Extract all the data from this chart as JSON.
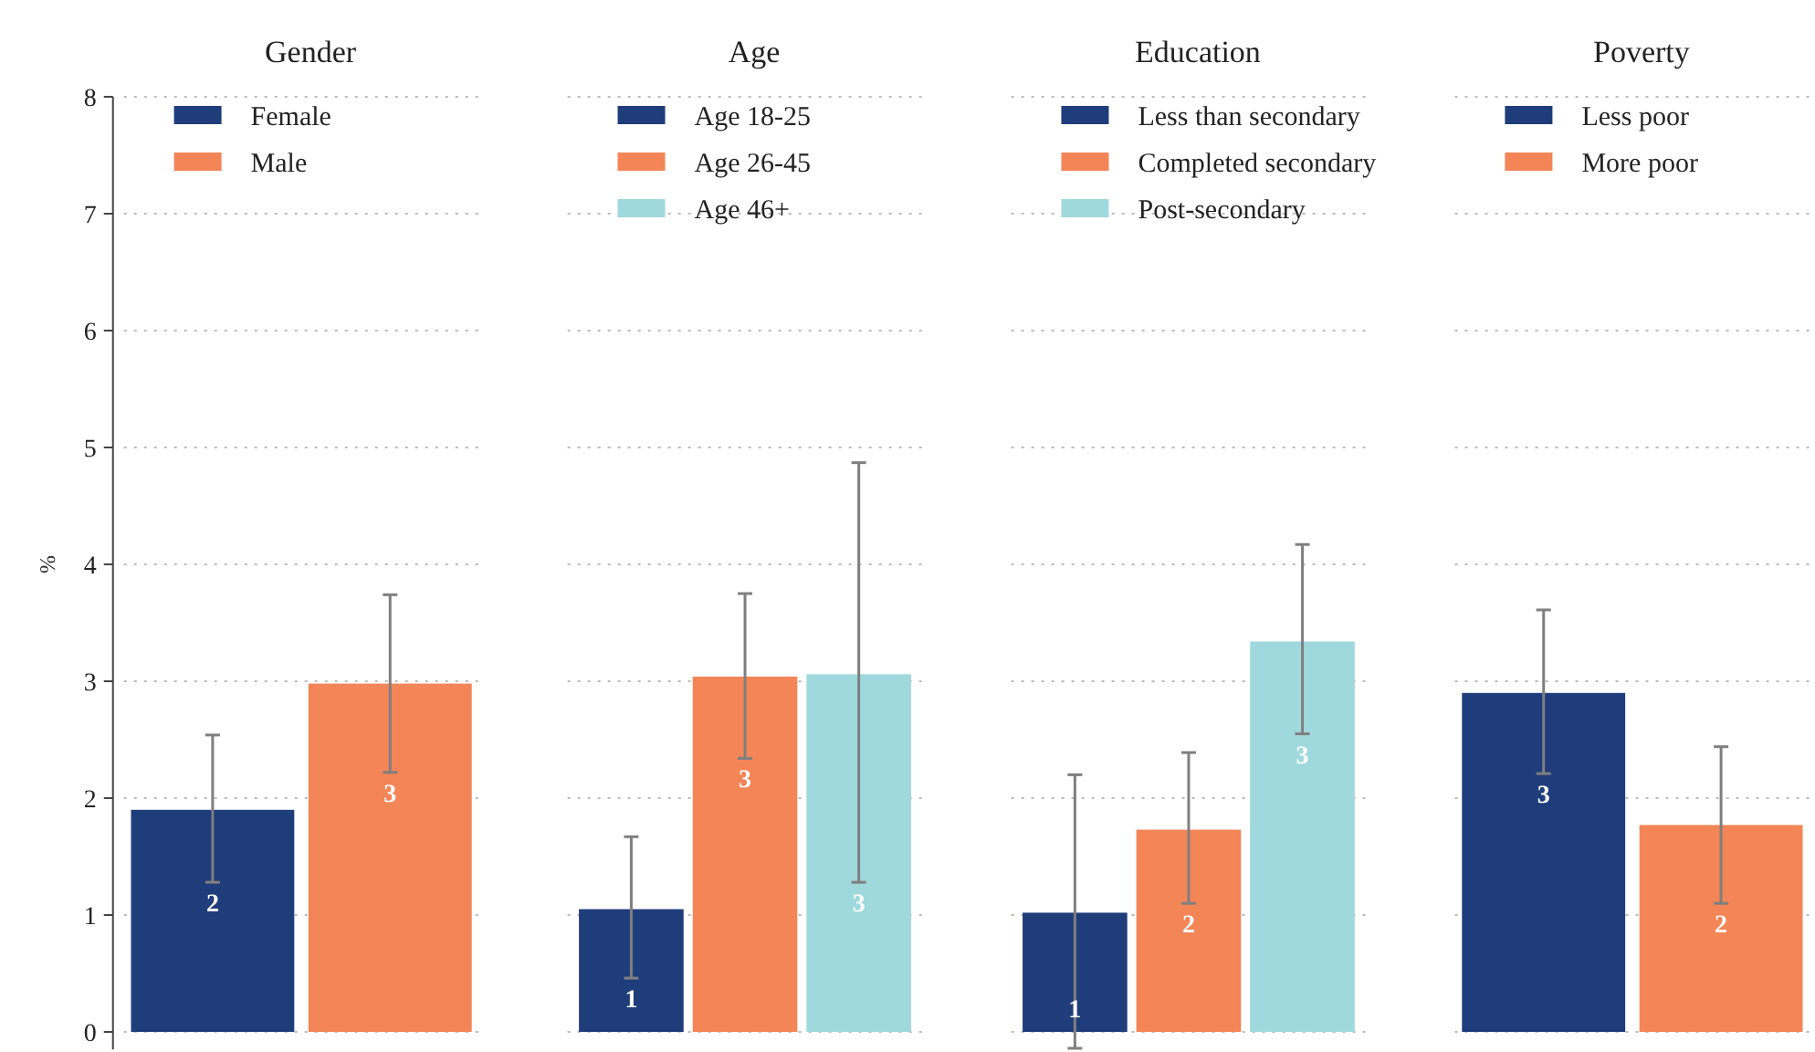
{
  "chart_data": {
    "type": "bar",
    "ylabel": "%",
    "categories": [
      "Gender",
      "Age",
      "Education",
      "Poverty"
    ],
    "ylim": [
      -0.15,
      8
    ],
    "yticks": [
      0,
      1,
      2,
      3,
      4,
      5,
      6,
      7,
      8
    ],
    "grid": "y",
    "legend": "top",
    "series": [
      {
        "name": "Female",
        "color": "#1f3d7a",
        "values": [
          1.9,
          null,
          null,
          null
        ],
        "errors": [
          [
            1.28,
            2.54
          ],
          null,
          null,
          null
        ],
        "value_labels": [
          "2",
          null,
          null,
          null
        ]
      },
      {
        "name": "Male",
        "color": "#f38557",
        "values": [
          2.98,
          null,
          null,
          null
        ],
        "errors": [
          [
            2.22,
            3.74
          ],
          null,
          null,
          null
        ],
        "value_labels": [
          "3",
          null,
          null,
          null
        ]
      },
      {
        "name": "Age 18-25",
        "color": "#1f3d7a",
        "values": [
          null,
          1.05,
          null,
          null
        ],
        "errors": [
          null,
          [
            0.46,
            1.67
          ],
          null,
          null
        ],
        "value_labels": [
          null,
          "1",
          null,
          null
        ]
      },
      {
        "name": "Age 26-45",
        "color": "#f38557",
        "values": [
          null,
          3.04,
          null,
          null
        ],
        "errors": [
          null,
          [
            2.34,
            3.75
          ],
          null,
          null
        ],
        "value_labels": [
          null,
          "3",
          null,
          null
        ]
      },
      {
        "name": "Age 46+",
        "color": "#a0d9dd",
        "values": [
          null,
          3.06,
          null,
          null
        ],
        "errors": [
          null,
          [
            1.28,
            4.87
          ],
          null,
          null
        ],
        "value_labels": [
          null,
          "3",
          null,
          null
        ]
      },
      {
        "name": "Less than secondary",
        "color": "#1f3d7a",
        "values": [
          null,
          null,
          1.02,
          null
        ],
        "errors": [
          null,
          null,
          [
            -0.14,
            2.2
          ],
          null
        ],
        "value_labels": [
          null,
          null,
          "1",
          null
        ]
      },
      {
        "name": "Completed secondary",
        "color": "#f38557",
        "values": [
          null,
          null,
          1.73,
          null
        ],
        "errors": [
          null,
          null,
          [
            1.1,
            2.39
          ],
          null
        ],
        "value_labels": [
          null,
          null,
          "2",
          null
        ]
      },
      {
        "name": "Post-secondary",
        "color": "#a0d9dd",
        "values": [
          null,
          null,
          3.34,
          null
        ],
        "errors": [
          null,
          null,
          [
            2.55,
            4.17
          ],
          null
        ],
        "value_labels": [
          null,
          null,
          "3",
          null
        ]
      },
      {
        "name": "Less poor",
        "color": "#1f3d7a",
        "values": [
          null,
          null,
          null,
          2.9
        ],
        "errors": [
          null,
          null,
          null,
          [
            2.21,
            3.61
          ]
        ],
        "value_labels": [
          null,
          null,
          null,
          "3"
        ]
      },
      {
        "name": "More poor",
        "color": "#f38557",
        "values": [
          null,
          null,
          null,
          1.77
        ],
        "errors": [
          null,
          null,
          null,
          [
            1.1,
            2.44
          ]
        ],
        "value_labels": [
          null,
          null,
          null,
          "2"
        ]
      }
    ]
  }
}
